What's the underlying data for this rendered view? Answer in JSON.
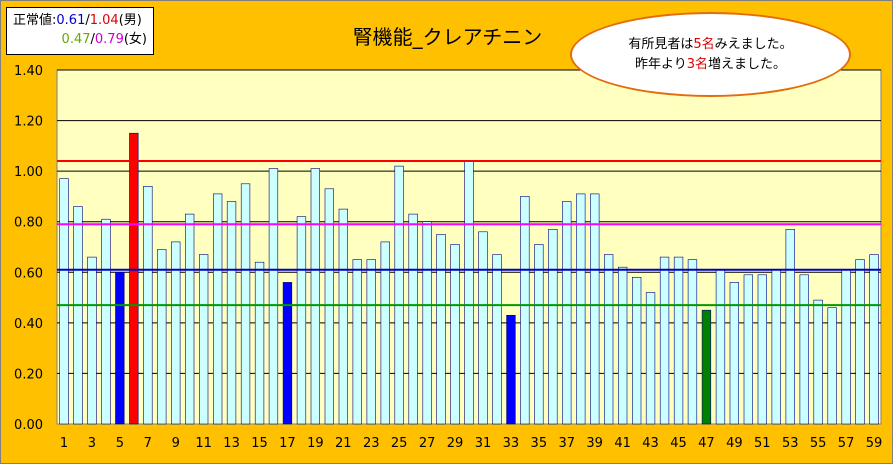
{
  "legend": {
    "label_prefix": "正常値:",
    "male_low": "0.61",
    "slash": "/",
    "male_high": "1.04",
    "male_suffix": "(男)",
    "female_low": "0.47",
    "female_high": "0.79",
    "female_suffix": "(女)"
  },
  "note": {
    "line1_a": "有所見者は",
    "line1_num": "5名",
    "line1_b": "みえました。",
    "line2_a": "昨年より",
    "line2_num": "3名",
    "line2_b": "増えました。"
  },
  "colors": {
    "background": "#FFC000",
    "plot_area": "#FFFFC0",
    "bar_fill": "#CCFFFF",
    "bar_stroke": "#000080",
    "highlight_blue": "#0000FF",
    "highlight_red": "#FF0000",
    "highlight_green": "#008000",
    "line_red": "#FF0000",
    "line_magenta": "#FF00FF",
    "line_blue": "#0000C0",
    "line_green": "#009900",
    "bubble_border": "#E46C0A"
  },
  "chart_data": {
    "type": "bar",
    "title": "腎機能_クレアチニン",
    "xlabel": "",
    "ylabel": "",
    "ylim": [
      0,
      1.4
    ],
    "yticks": [
      "0.00",
      "0.20",
      "0.40",
      "0.60",
      "0.80",
      "1.00",
      "1.20",
      "1.40"
    ],
    "xtick_labels": [
      "1",
      "3",
      "5",
      "7",
      "9",
      "11",
      "13",
      "15",
      "17",
      "19",
      "21",
      "23",
      "25",
      "27",
      "29",
      "31",
      "33",
      "35",
      "37",
      "39",
      "41",
      "43",
      "45",
      "47",
      "49",
      "51",
      "53",
      "55",
      "57",
      "59"
    ],
    "categories": [
      1,
      2,
      3,
      4,
      5,
      6,
      7,
      8,
      9,
      10,
      11,
      12,
      13,
      14,
      15,
      16,
      17,
      18,
      19,
      20,
      21,
      22,
      23,
      24,
      25,
      26,
      27,
      28,
      29,
      30,
      31,
      32,
      33,
      34,
      35,
      36,
      37,
      38,
      39,
      40,
      41,
      42,
      43,
      44,
      45,
      46,
      47,
      48,
      49,
      50,
      51,
      52,
      53,
      54,
      55,
      56,
      57,
      58,
      59
    ],
    "values": [
      0.97,
      0.86,
      0.66,
      0.81,
      0.6,
      1.15,
      0.94,
      0.69,
      0.72,
      0.83,
      0.67,
      0.91,
      0.88,
      0.95,
      0.64,
      1.01,
      0.56,
      0.82,
      1.01,
      0.93,
      0.85,
      0.65,
      0.65,
      0.72,
      1.02,
      0.83,
      0.8,
      0.75,
      0.71,
      1.04,
      0.76,
      0.67,
      0.43,
      0.9,
      0.71,
      0.77,
      0.88,
      0.91,
      0.91,
      0.67,
      0.62,
      0.58,
      0.52,
      0.66,
      0.66,
      0.65,
      0.45,
      0.61,
      0.56,
      0.59,
      0.59,
      0.61,
      0.77,
      0.59,
      0.49,
      0.46,
      0.61,
      0.65,
      0.67
    ],
    "highlights": [
      {
        "index": 5,
        "color": "blue"
      },
      {
        "index": 6,
        "color": "red"
      },
      {
        "index": 17,
        "color": "blue"
      },
      {
        "index": 33,
        "color": "blue"
      },
      {
        "index": 47,
        "color": "green"
      }
    ],
    "reference_lines": [
      {
        "value": 1.04,
        "color": "red"
      },
      {
        "value": 0.79,
        "color": "magenta"
      },
      {
        "value": 0.61,
        "color": "blue"
      },
      {
        "value": 0.47,
        "color": "green"
      }
    ],
    "grid": true
  }
}
